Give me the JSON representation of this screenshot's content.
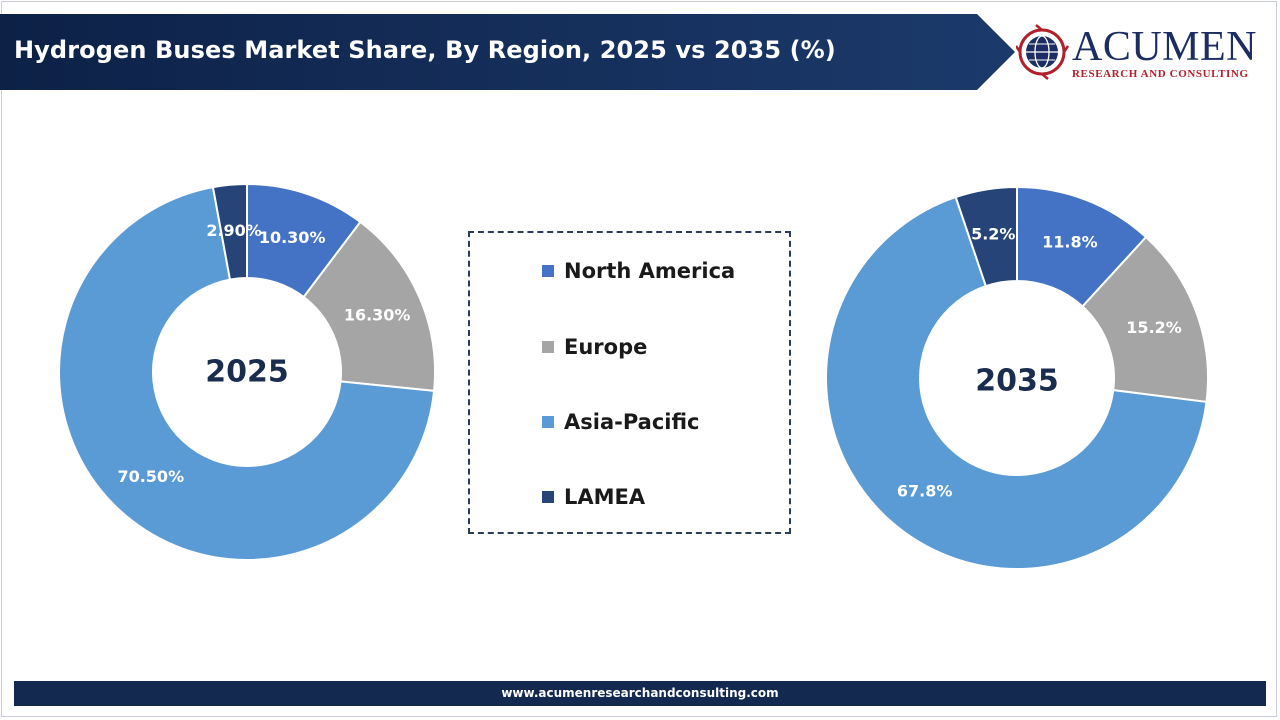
{
  "header": {
    "title": "Hydrogen Buses Market Share, By Region, 2025 vs 2035 (%)"
  },
  "logo": {
    "name": "ACUMEN",
    "tagline": "RESEARCH AND CONSULTING"
  },
  "footer": {
    "url": "www.acumenresearchandconsulting.com"
  },
  "colors": {
    "north_america": "#4472c4",
    "europe": "#a5a5a5",
    "asia_pacific": "#5b9bd5",
    "lamea": "#264478",
    "header_bg": "#13294f"
  },
  "legend": [
    {
      "label": "North America"
    },
    {
      "label": "Europe"
    },
    {
      "label": "Asia-Pacific"
    },
    {
      "label": "LAMEA"
    }
  ],
  "chart_data": [
    {
      "type": "pie",
      "style": "donut",
      "center_label": "2025",
      "categories": [
        "North America",
        "Europe",
        "Asia-Pacific",
        "LAMEA"
      ],
      "values": [
        10.3,
        16.3,
        70.5,
        2.9
      ],
      "labels": [
        "10.30%",
        "16.30%",
        "70.50%",
        "2.90%"
      ],
      "legend_position": "center"
    },
    {
      "type": "pie",
      "style": "donut",
      "center_label": "2035",
      "categories": [
        "North America",
        "Europe",
        "Asia-Pacific",
        "LAMEA"
      ],
      "values": [
        11.8,
        15.2,
        67.8,
        5.2
      ],
      "labels": [
        "11.8%",
        "15.2%",
        "67.8%",
        "5.2%"
      ],
      "legend_position": "center"
    }
  ]
}
